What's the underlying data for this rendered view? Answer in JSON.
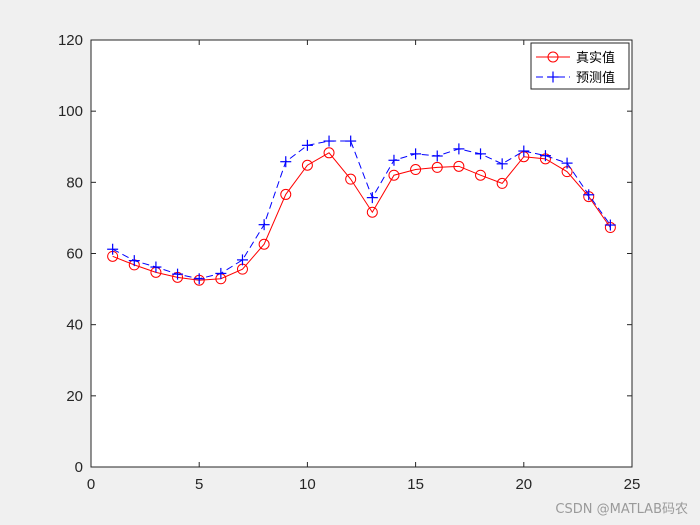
{
  "chart_data": {
    "type": "line",
    "title": "",
    "xlabel": "",
    "ylabel": "",
    "xlim": [
      0,
      25
    ],
    "ylim": [
      0,
      120
    ],
    "xticks": [
      0,
      5,
      10,
      15,
      20,
      25
    ],
    "yticks": [
      0,
      20,
      40,
      60,
      80,
      100,
      120
    ],
    "grid": false,
    "legend_position": "top-right",
    "x": [
      1,
      2,
      3,
      4,
      5,
      6,
      7,
      8,
      9,
      10,
      11,
      12,
      13,
      14,
      15,
      16,
      17,
      18,
      19,
      20,
      21,
      22,
      23,
      24
    ],
    "series": [
      {
        "name": "真实值",
        "color": "#ff0000",
        "line_style": "solid",
        "marker": "circle",
        "values": [
          59.2,
          56.8,
          54.7,
          53.3,
          52.5,
          52.9,
          55.6,
          62.6,
          76.6,
          84.8,
          88.3,
          80.9,
          71.6,
          82.0,
          83.6,
          84.2,
          84.5,
          82.0,
          79.7,
          87.2,
          86.6,
          83.0,
          76.0,
          67.3
        ]
      },
      {
        "name": "预测值",
        "color": "#0000ff",
        "line_style": "dashed",
        "marker": "plus",
        "values": [
          61.2,
          58.0,
          56.2,
          54.2,
          52.9,
          54.4,
          58.2,
          68.1,
          85.8,
          90.4,
          91.6,
          91.6,
          75.7,
          86.2,
          88.0,
          87.4,
          89.4,
          88.0,
          85.2,
          88.8,
          87.5,
          85.4,
          76.5,
          68.0
        ]
      }
    ]
  },
  "watermark": "CSDN @MATLAB码农"
}
